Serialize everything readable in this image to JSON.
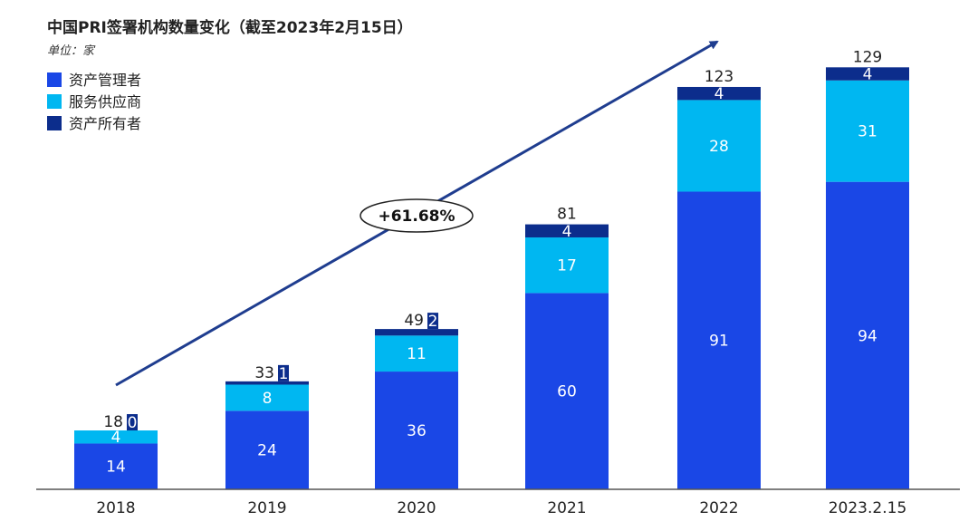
{
  "chart_data": {
    "type": "bar",
    "stacked": true,
    "title": "中国PRI签署机构数量变化（截至2023年2月15日）",
    "unit_label": "单位：家",
    "categories": [
      "2018",
      "2019",
      "2020",
      "2021",
      "2022",
      "2023.2.15"
    ],
    "series": [
      {
        "name": "资产管理者",
        "color": "#1a47e6",
        "values": [
          14,
          24,
          36,
          60,
          91,
          94
        ]
      },
      {
        "name": "服务供应商",
        "color": "#00b7f1",
        "values": [
          4,
          8,
          11,
          17,
          28,
          31
        ]
      },
      {
        "name": "资产所有者",
        "color": "#0c2d8c",
        "values": [
          0,
          1,
          2,
          4,
          4,
          4
        ]
      }
    ],
    "totals": [
      18,
      33,
      49,
      81,
      123,
      129
    ],
    "annotation": "+61.68%",
    "legend_position": "top-left",
    "ylim": [
      0,
      135
    ],
    "grid": false
  }
}
